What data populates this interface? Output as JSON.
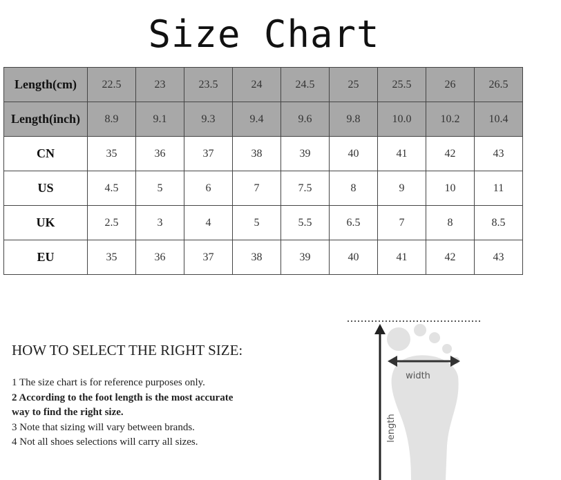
{
  "title": "Size Chart",
  "table": {
    "rows": [
      {
        "label": "Length(cm)",
        "shaded": true,
        "values": [
          "22.5",
          "23",
          "23.5",
          "24",
          "24.5",
          "25",
          "25.5",
          "26",
          "26.5"
        ]
      },
      {
        "label": "Length(inch)",
        "shaded": true,
        "values": [
          "8.9",
          "9.1",
          "9.3",
          "9.4",
          "9.6",
          "9.8",
          "10.0",
          "10.2",
          "10.4"
        ]
      },
      {
        "label": "CN",
        "shaded": false,
        "values": [
          "35",
          "36",
          "37",
          "38",
          "39",
          "40",
          "41",
          "42",
          "43"
        ]
      },
      {
        "label": "US",
        "shaded": false,
        "values": [
          "4.5",
          "5",
          "6",
          "7",
          "7.5",
          "8",
          "9",
          "10",
          "11"
        ]
      },
      {
        "label": "UK",
        "shaded": false,
        "values": [
          "2.5",
          "3",
          "4",
          "5",
          "5.5",
          "6.5",
          "7",
          "8",
          "8.5"
        ]
      },
      {
        "label": "EU",
        "shaded": false,
        "values": [
          "35",
          "36",
          "37",
          "38",
          "39",
          "40",
          "41",
          "42",
          "43"
        ]
      }
    ]
  },
  "howto": {
    "heading": "HOW TO SELECT THE RIGHT SIZE:",
    "notes": [
      {
        "text": "1 The size chart is for reference purposes only.",
        "bold": false
      },
      {
        "text": "2 According to the foot length is the most accurate way to find the right size.",
        "bold": true
      },
      {
        "text": "3 Note that sizing will vary between brands.",
        "bold": false
      },
      {
        "text": "4 Not all shoes selections will carry all sizes.",
        "bold": false
      }
    ]
  },
  "diagram": {
    "width_label": "width",
    "length_label": "length"
  }
}
